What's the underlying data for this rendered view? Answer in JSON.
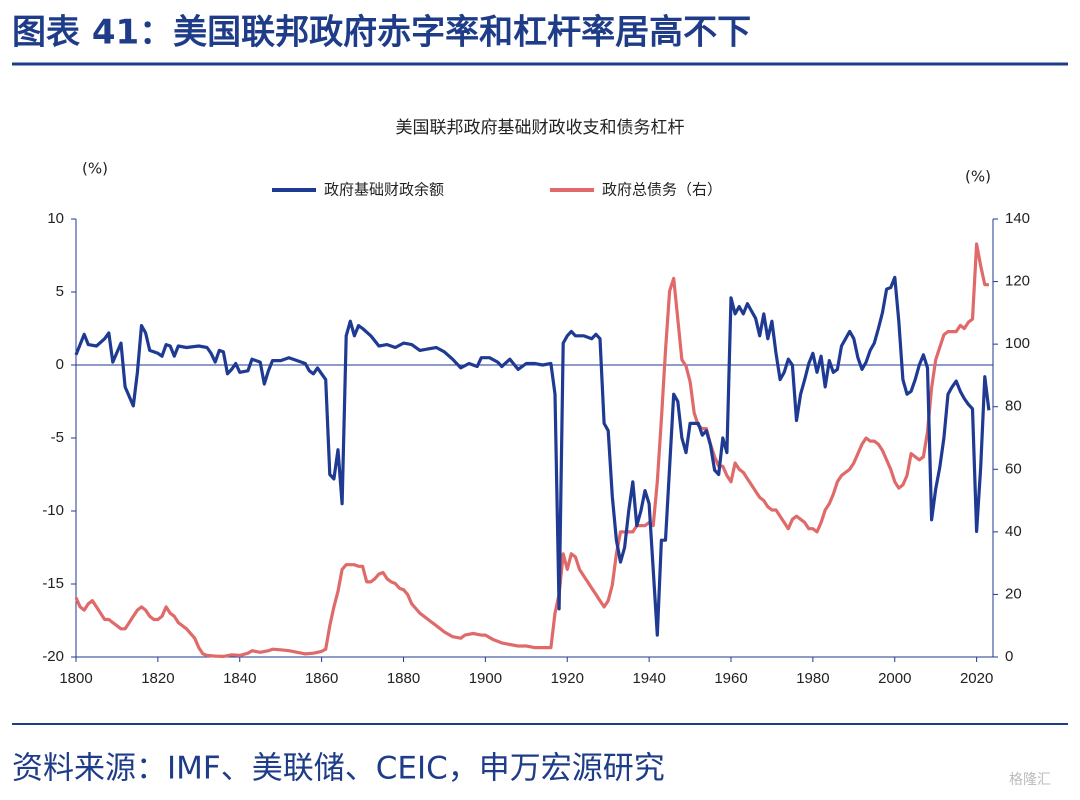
{
  "header": {
    "title": "图表 41：美国联邦政府赤字率和杠杆率居高不下"
  },
  "chart_data": {
    "type": "line",
    "title": "美国联邦政府基础财政收支和债务杠杆",
    "y_label": "(%)",
    "y2_label": "(%)",
    "xlim": [
      1800,
      2024
    ],
    "xticks": [
      1800,
      1820,
      1840,
      1860,
      1880,
      1900,
      1920,
      1940,
      1960,
      1980,
      2000,
      2020
    ],
    "ylim": [
      -20,
      10
    ],
    "yticks": [
      -20,
      -15,
      -10,
      -5,
      0,
      5,
      10
    ],
    "y2lim": [
      0,
      140
    ],
    "y2ticks": [
      0,
      20,
      40,
      60,
      80,
      100,
      120,
      140
    ],
    "legend": "top",
    "series": [
      {
        "name": "政府基础财政余额",
        "color": "#1f3a93",
        "x": [
          1800,
          1802,
          1803,
          1805,
          1807,
          1808,
          1809,
          1811,
          1812,
          1814,
          1815,
          1816,
          1817,
          1818,
          1820,
          1821,
          1822,
          1823,
          1824,
          1825,
          1827,
          1830,
          1832,
          1833,
          1834,
          1835,
          1836,
          1837,
          1838,
          1839,
          1840,
          1842,
          1843,
          1845,
          1846,
          1847,
          1848,
          1850,
          1852,
          1854,
          1856,
          1857,
          1858,
          1859,
          1860,
          1861,
          1862,
          1863,
          1864,
          1865,
          1866,
          1867,
          1868,
          1869,
          1870,
          1872,
          1874,
          1876,
          1878,
          1880,
          1882,
          1884,
          1886,
          1888,
          1890,
          1892,
          1894,
          1896,
          1898,
          1899,
          1901,
          1903,
          1904,
          1906,
          1908,
          1910,
          1912,
          1914,
          1916,
          1917,
          1918,
          1919,
          1920,
          1921,
          1922,
          1924,
          1926,
          1927,
          1928,
          1929,
          1930,
          1931,
          1932,
          1933,
          1934,
          1935,
          1936,
          1937,
          1938,
          1939,
          1940,
          1941,
          1942,
          1943,
          1944,
          1945,
          1946,
          1947,
          1948,
          1949,
          1950,
          1952,
          1953,
          1954,
          1955,
          1956,
          1957,
          1958,
          1959,
          1960,
          1961,
          1962,
          1963,
          1964,
          1965,
          1966,
          1967,
          1968,
          1969,
          1970,
          1971,
          1972,
          1973,
          1974,
          1975,
          1976,
          1977,
          1978,
          1979,
          1980,
          1981,
          1982,
          1983,
          1984,
          1985,
          1986,
          1987,
          1988,
          1989,
          1990,
          1991,
          1992,
          1993,
          1994,
          1995,
          1996,
          1997,
          1998,
          1999,
          2000,
          2001,
          2002,
          2003,
          2004,
          2005,
          2006,
          2007,
          2008,
          2009,
          2010,
          2011,
          2012,
          2013,
          2014,
          2015,
          2016,
          2017,
          2018,
          2019,
          2020,
          2021,
          2022,
          2023
        ],
        "values": [
          0.7,
          2.1,
          1.4,
          1.3,
          1.8,
          2.2,
          0.2,
          1.5,
          -1.5,
          -2.8,
          -0.5,
          2.7,
          2.2,
          1.0,
          0.8,
          0.6,
          1.4,
          1.3,
          0.6,
          1.3,
          1.2,
          1.3,
          1.2,
          0.8,
          0.2,
          1.0,
          0.9,
          -0.6,
          -0.3,
          0.1,
          -0.5,
          -0.4,
          0.4,
          0.2,
          -1.3,
          -0.4,
          0.3,
          0.3,
          0.5,
          0.3,
          0.1,
          -0.4,
          -0.6,
          -0.2,
          -0.6,
          -1.0,
          -7.5,
          -7.8,
          -5.8,
          -9.5,
          2.0,
          3.0,
          2.0,
          2.7,
          2.5,
          2.0,
          1.3,
          1.4,
          1.2,
          1.5,
          1.4,
          1.0,
          1.1,
          1.2,
          0.9,
          0.4,
          -0.2,
          0.1,
          -0.1,
          0.5,
          0.5,
          0.2,
          -0.1,
          0.4,
          -0.3,
          0.1,
          0.1,
          0.0,
          0.1,
          -2.0,
          -16.7,
          1.5,
          2.0,
          2.3,
          2.0,
          2.0,
          1.8,
          2.1,
          1.8,
          -4.0,
          -4.5,
          -9.0,
          -12.0,
          -13.5,
          -12.5,
          -10.0,
          -8.0,
          -11.0,
          -10.0,
          -8.6,
          -9.5,
          -14.0,
          -18.5,
          -12.0,
          -12.0,
          -7.0,
          -2.0,
          -2.5,
          -5.0,
          -6.0,
          -4.0,
          -4.0,
          -4.8,
          -4.5,
          -5.5,
          -7.2,
          -7.5,
          -5.0,
          -6.0,
          4.6,
          3.5,
          4.0,
          3.5,
          4.2,
          3.7,
          3.2,
          2.0,
          3.5,
          1.8,
          3.0,
          0.8,
          -1.0,
          -0.5,
          0.4,
          0.0,
          -3.8,
          -2.0,
          -1.0,
          0.1,
          0.8,
          -0.5,
          0.6,
          -1.5,
          0.3,
          -0.5,
          -0.3,
          1.3,
          1.8,
          2.3,
          1.8,
          0.5,
          -0.3,
          0.2,
          1.0,
          1.5,
          2.5,
          3.6,
          5.2,
          5.3,
          6.0,
          3.0,
          -1.0,
          -2.0,
          -1.8,
          -1.0,
          0.0,
          0.7,
          -0.2,
          -10.6,
          -8.5,
          -7.0,
          -5.0,
          -2.0,
          -1.5,
          -1.1,
          -1.8,
          -2.3,
          -2.7,
          -3.0,
          -11.4,
          -7.0,
          -0.8,
          -3.1
        ]
      },
      {
        "name": "政府总债务（右）",
        "color": "#e06a6a",
        "axis": "y2",
        "x": [
          1800,
          1801,
          1802,
          1803,
          1804,
          1805,
          1806,
          1807,
          1808,
          1809,
          1810,
          1811,
          1812,
          1813,
          1814,
          1815,
          1816,
          1817,
          1818,
          1819,
          1820,
          1821,
          1822,
          1823,
          1824,
          1825,
          1827,
          1829,
          1830,
          1831,
          1832,
          1834,
          1836,
          1838,
          1840,
          1842,
          1843,
          1845,
          1847,
          1848,
          1850,
          1852,
          1854,
          1856,
          1858,
          1860,
          1861,
          1862,
          1863,
          1864,
          1865,
          1866,
          1867,
          1868,
          1869,
          1870,
          1871,
          1872,
          1873,
          1874,
          1875,
          1876,
          1877,
          1878,
          1879,
          1880,
          1881,
          1882,
          1883,
          1884,
          1886,
          1888,
          1890,
          1892,
          1894,
          1895,
          1897,
          1899,
          1900,
          1902,
          1904,
          1906,
          1908,
          1910,
          1912,
          1914,
          1916,
          1917,
          1918,
          1919,
          1920,
          1921,
          1922,
          1923,
          1924,
          1925,
          1926,
          1927,
          1928,
          1929,
          1930,
          1931,
          1932,
          1933,
          1934,
          1935,
          1936,
          1937,
          1938,
          1939,
          1940,
          1941,
          1942,
          1943,
          1944,
          1945,
          1946,
          1947,
          1948,
          1949,
          1950,
          1951,
          1952,
          1953,
          1954,
          1955,
          1956,
          1957,
          1958,
          1959,
          1960,
          1961,
          1962,
          1963,
          1964,
          1965,
          1966,
          1967,
          1968,
          1969,
          1970,
          1971,
          1972,
          1973,
          1974,
          1975,
          1976,
          1977,
          1978,
          1979,
          1980,
          1981,
          1982,
          1983,
          1984,
          1985,
          1986,
          1987,
          1988,
          1989,
          1990,
          1991,
          1992,
          1993,
          1994,
          1995,
          1996,
          1997,
          1998,
          1999,
          2000,
          2001,
          2002,
          2003,
          2004,
          2005,
          2006,
          2007,
          2008,
          2009,
          2010,
          2011,
          2012,
          2013,
          2014,
          2015,
          2016,
          2017,
          2018,
          2019,
          2020,
          2021,
          2022,
          2023
        ],
        "values": [
          19,
          16,
          15,
          17,
          18,
          16,
          14,
          12,
          12,
          11,
          10,
          9,
          9,
          11,
          13,
          15,
          16,
          15,
          13,
          12,
          12,
          13,
          16,
          14,
          13,
          11,
          9,
          6,
          3,
          1,
          0.5,
          0.3,
          0.2,
          0.7,
          0.5,
          1.2,
          2,
          1.5,
          2,
          2.5,
          2.3,
          2,
          1.5,
          1,
          1.2,
          1.8,
          2.5,
          10,
          16,
          21,
          28,
          29.5,
          29.5,
          29.5,
          29,
          29,
          24,
          24,
          25,
          26.5,
          27,
          25,
          24,
          23.5,
          22,
          21.5,
          20,
          17,
          15.5,
          14,
          12,
          10,
          8,
          6.5,
          6,
          7,
          7.5,
          7,
          7,
          5.5,
          4.5,
          4,
          3.5,
          3.5,
          3,
          3,
          3,
          14,
          20,
          33,
          28,
          33,
          32,
          28,
          26,
          24,
          22,
          20,
          18,
          16,
          18,
          23,
          33,
          40,
          40,
          40,
          40,
          42,
          42,
          42,
          43,
          42,
          56,
          76,
          98,
          117,
          121,
          108,
          95,
          93,
          88,
          78,
          74,
          73,
          73,
          68,
          64,
          61,
          61,
          58,
          56,
          62,
          60,
          59,
          57,
          55,
          53,
          51,
          50,
          48,
          47,
          47,
          45,
          43,
          41,
          44,
          45,
          44,
          43,
          41,
          41,
          40,
          43,
          47,
          49,
          52,
          56,
          58,
          59,
          60,
          62,
          65,
          68,
          70,
          69,
          69,
          68,
          66,
          63,
          60,
          56,
          54,
          55,
          58,
          65,
          64,
          63,
          64,
          72,
          86,
          95,
          99,
          103,
          104,
          104,
          104,
          106,
          105,
          107,
          108,
          132,
          125,
          119,
          119
        ]
      }
    ]
  },
  "footer": {
    "source": "资料来源：IMF、美联储、CEIC，申万宏源研究",
    "watermark": "格隆汇"
  }
}
